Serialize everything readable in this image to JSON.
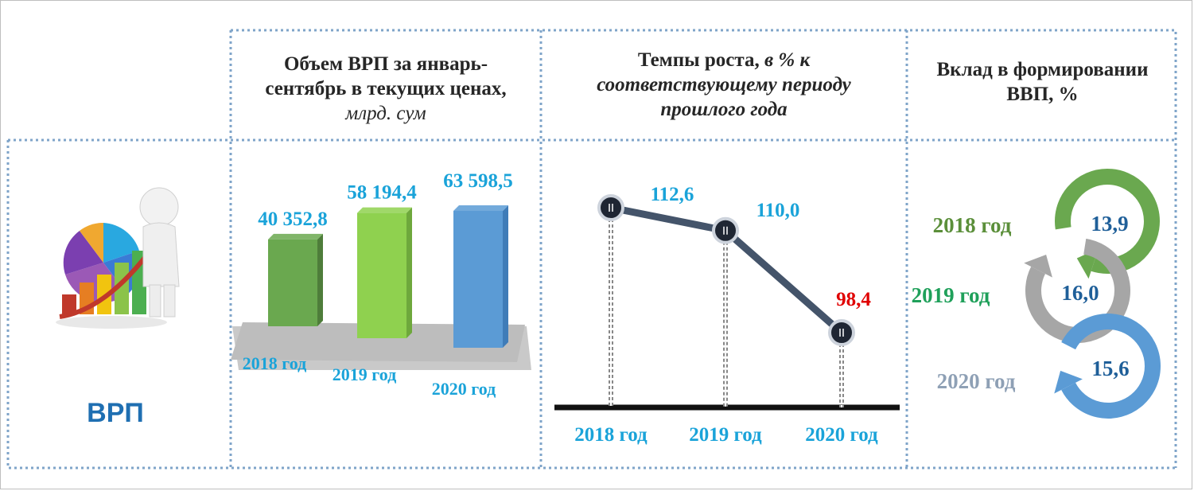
{
  "row_label": "ВРП",
  "headers": {
    "volume": {
      "line1": "Объем ВРП за январь-",
      "line2": "сентябрь в текущих ценах,",
      "unit": "млрд. сум"
    },
    "growth": {
      "line1_bold": "Темпы роста,",
      "line1_italic": "в % к",
      "line2": "соответствующему периоду",
      "line3": "прошлого года"
    },
    "contribution": {
      "line1": "Вклад в формировании",
      "line2": "ВВП, %"
    }
  },
  "colors": {
    "green": "#6aa84f",
    "light_green": "#8fd14f",
    "blue": "#5b9bd5",
    "cyan_text": "#1aa3d9",
    "red_text": "#e00000",
    "dark_blue_text": "#1f5f99",
    "grey": "#a6a6a6"
  },
  "chart_data": [
    {
      "type": "bar",
      "categories": [
        "2018 год",
        "2019 год",
        "2020 год"
      ],
      "values": [
        40352.8,
        58194.4,
        63598.5
      ],
      "value_labels": [
        "40 352,8",
        "58 194,4",
        "63 598,5"
      ],
      "title": "Объем ВРП за январь-сентябрь в текущих ценах, млрд. сум"
    },
    {
      "type": "line",
      "categories": [
        "2018 год",
        "2019 год",
        "2020 год"
      ],
      "values": [
        112.6,
        110.0,
        98.4
      ],
      "value_labels": [
        "112,6",
        "110,0",
        "98,4"
      ],
      "title": "Темпы роста, в % к соответствующему периоду прошлого года"
    },
    {
      "type": "table",
      "categories": [
        "2018 год",
        "2019 год",
        "2020 год"
      ],
      "values": [
        13.9,
        16.0,
        15.6
      ],
      "value_labels": [
        "13,9",
        "16,0",
        "15,6"
      ],
      "title": "Вклад в формировании ВВП, %"
    }
  ]
}
